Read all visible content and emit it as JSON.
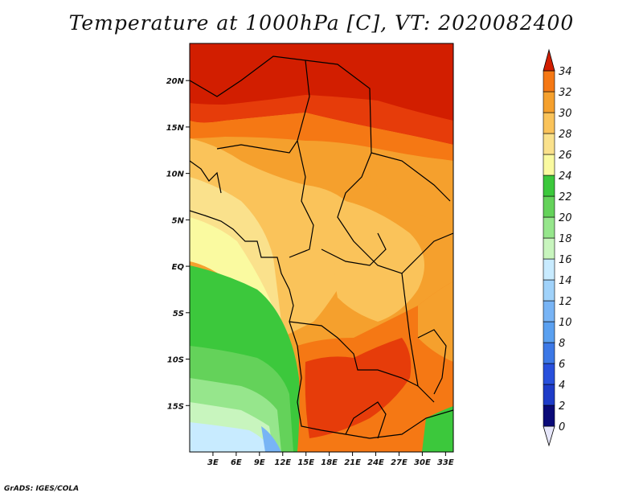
{
  "title": "Temperature at 1000hPa [C], VT: 2020082400",
  "credit": "GrADS: IGES/COLA",
  "map": {
    "lon_range": [
      0,
      34
    ],
    "lat_range": [
      -20,
      24
    ],
    "lat_ticks": [
      {
        "value": 20,
        "label": "20N"
      },
      {
        "value": 15,
        "label": "15N"
      },
      {
        "value": 10,
        "label": "10N"
      },
      {
        "value": 5,
        "label": "5N"
      },
      {
        "value": 0,
        "label": "EQ"
      },
      {
        "value": -5,
        "label": "5S"
      },
      {
        "value": -10,
        "label": "10S"
      },
      {
        "value": -15,
        "label": "15S"
      }
    ],
    "lon_ticks": [
      {
        "value": 3,
        "label": "3E"
      },
      {
        "value": 6,
        "label": "6E"
      },
      {
        "value": 9,
        "label": "9E"
      },
      {
        "value": 12,
        "label": "12E"
      },
      {
        "value": 15,
        "label": "15E"
      },
      {
        "value": 18,
        "label": "18E"
      },
      {
        "value": 21,
        "label": "21E"
      },
      {
        "value": 24,
        "label": "24E"
      },
      {
        "value": 27,
        "label": "27E"
      },
      {
        "value": 30,
        "label": "30E"
      },
      {
        "value": 33,
        "label": "33E"
      }
    ]
  },
  "colorbar": {
    "levels": [
      "0",
      "2",
      "4",
      "6",
      "8",
      "10",
      "12",
      "14",
      "16",
      "18",
      "20",
      "22",
      "24",
      "26",
      "28",
      "30",
      "32",
      "34"
    ],
    "colors": [
      "#e6e6fa",
      "#0a0a78",
      "#1e3cc8",
      "#2850dc",
      "#3c78e6",
      "#5aa0f0",
      "#78b4f5",
      "#a0d2fa",
      "#c8ebff",
      "#c8f5be",
      "#96e68c",
      "#64d25a",
      "#3cc83c",
      "#fafaa0",
      "#fae18c",
      "#fac35a",
      "#f5a02d",
      "#f57814",
      "#e63c0a",
      "#d21e00"
    ]
  }
}
